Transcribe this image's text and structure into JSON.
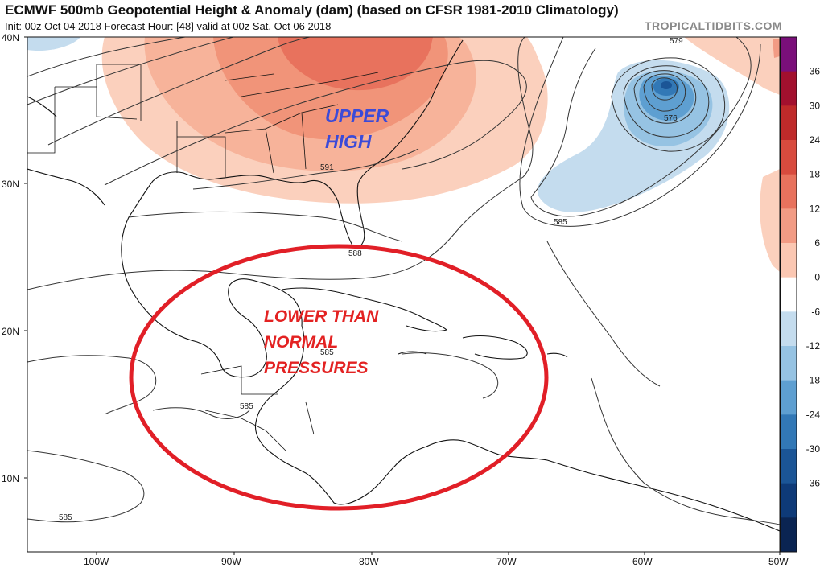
{
  "header": {
    "title": "ECMWF 500mb Geopotential Height & Anomaly (dam) (based on CFSR 1981-2010 Climatology)",
    "subtitle": "Init: 00z Oct 04 2018   Forecast Hour: [48]   valid at 00z Sat, Oct 06 2018",
    "brand": "TROPICALTIDBITS.COM"
  },
  "axes": {
    "lat_labels": [
      "40N",
      "30N",
      "20N",
      "10N"
    ],
    "lon_labels": [
      "100W",
      "90W",
      "80W",
      "70W",
      "60W",
      "50W"
    ]
  },
  "colorbar": {
    "labels": [
      "36",
      "30",
      "24",
      "18",
      "12",
      "6",
      "0",
      "-6",
      "-12",
      "-18",
      "-24",
      "-30",
      "-36"
    ],
    "colors": [
      "#7a0f7a",
      "#a2102e",
      "#bf2a2a",
      "#d84b3e",
      "#e8725d",
      "#f29b84",
      "#fbc7b2",
      "#ffffff",
      "#c4dcee",
      "#96c3e3",
      "#5e9fd1",
      "#3278b6",
      "#1b5596",
      "#0e3a78",
      "#0a2452"
    ]
  },
  "contour_labels": [
    "579",
    "576",
    "585",
    "591",
    "588",
    "585",
    "585",
    "585"
  ],
  "annotations": {
    "upper_high": [
      "UPPER",
      "HIGH"
    ],
    "lower_pressure": [
      "LOWER THAN",
      "NORMAL",
      "PRESSURES"
    ]
  }
}
